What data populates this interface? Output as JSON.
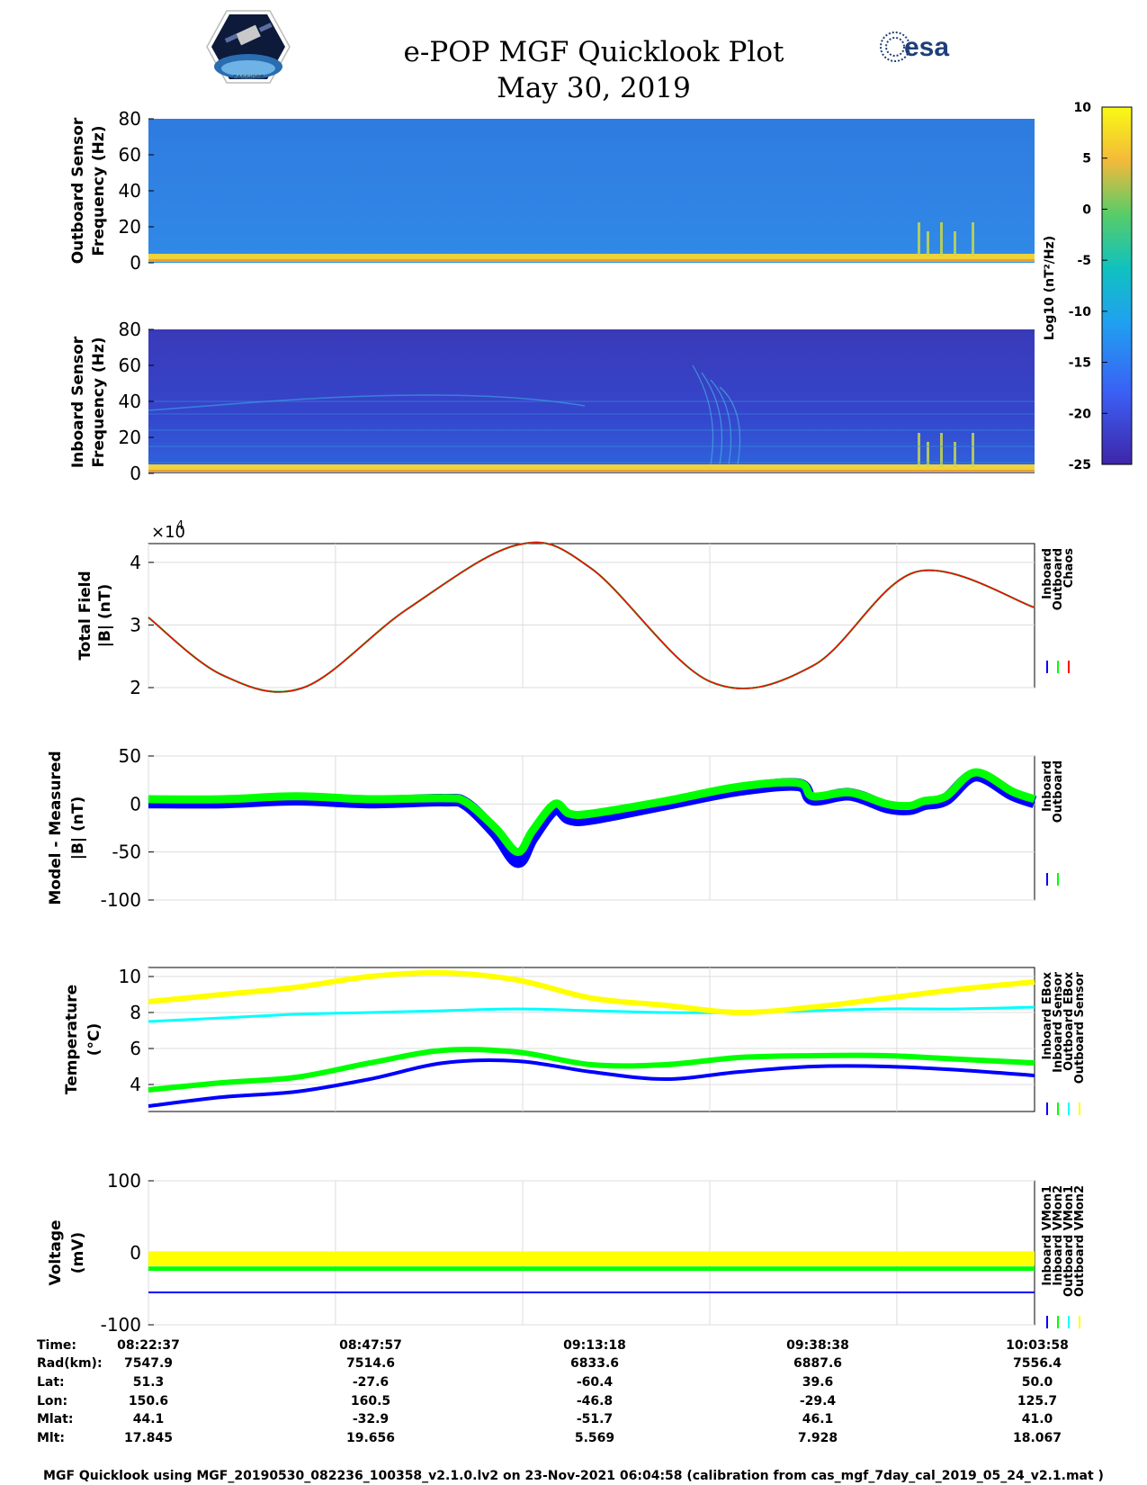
{
  "header": {
    "title_line1": "e-POP MGF Quicklook Plot",
    "title_line2": "May 30, 2019",
    "left_logo_text": "CASSIOPE",
    "right_logo_text": "esa"
  },
  "colorbar": {
    "label": "Log10 (nT²/Hz)",
    "ticks": [
      10,
      5,
      0,
      -5,
      -10,
      -15,
      -20,
      -25
    ],
    "range": [
      -25,
      10
    ]
  },
  "chart_data": [
    {
      "id": "outboard_spectrogram",
      "type": "heatmap",
      "ylabel_line1": "Outboard Sensor",
      "ylabel_line2": "Frequency (Hz)",
      "ylim": [
        0,
        80
      ],
      "yticks": [
        0,
        20,
        40,
        60,
        80
      ],
      "background_level_log10": -17,
      "low_freq_band_log10": 5
    },
    {
      "id": "inboard_spectrogram",
      "type": "heatmap",
      "ylabel_line1": "Inboard Sensor",
      "ylabel_line2": "Frequency (Hz)",
      "ylim": [
        0,
        80
      ],
      "yticks": [
        0,
        20,
        40,
        60,
        80
      ],
      "background_level_log10": -23,
      "low_freq_band_log10": 5
    },
    {
      "id": "total_field",
      "type": "line",
      "ylabel_line1": "Total Field",
      "ylabel_line2": "|B| (nT)",
      "exponent_label": "×10",
      "exponent_power": "4",
      "ylim": [
        2,
        4.3
      ],
      "yticks": [
        2,
        3,
        4
      ],
      "x_minutes": [
        0,
        10,
        21,
        35,
        50,
        60,
        76,
        90,
        104,
        120
      ],
      "series": [
        {
          "name": "Inboard",
          "color": "#0000ff",
          "values": [
            3.12,
            2.2,
            2.0,
            3.25,
            4.28,
            3.9,
            2.1,
            2.35,
            3.85,
            3.28
          ]
        },
        {
          "name": "Outboard",
          "color": "#00ff00",
          "values": [
            3.12,
            2.2,
            2.0,
            3.25,
            4.28,
            3.9,
            2.1,
            2.35,
            3.85,
            3.28
          ]
        },
        {
          "name": "Chaos",
          "color": "#ff0000",
          "values": [
            3.12,
            2.2,
            2.0,
            3.25,
            4.28,
            3.9,
            2.1,
            2.35,
            3.85,
            3.28
          ]
        }
      ]
    },
    {
      "id": "model_minus_measured",
      "type": "line",
      "ylabel_line1": "Model - Measured",
      "ylabel_line2": "|B| (nT)",
      "ylim": [
        -100,
        50
      ],
      "yticks": [
        50,
        0,
        -50,
        -100
      ],
      "x_minutes": [
        0,
        10,
        20,
        30,
        40,
        43,
        47,
        50,
        52,
        55,
        57,
        60,
        70,
        80,
        88,
        90,
        95,
        100,
        103,
        105,
        108,
        112,
        117,
        120
      ],
      "series": [
        {
          "name": "Inboard",
          "color": "#0000ff",
          "values": [
            2,
            2,
            5,
            2,
            4,
            0,
            -30,
            -60,
            -35,
            -5,
            -15,
            -15,
            0,
            15,
            20,
            5,
            10,
            -3,
            -5,
            0,
            5,
            30,
            10,
            2
          ]
        },
        {
          "name": "Outboard",
          "color": "#00ff00",
          "values": [
            5,
            5,
            8,
            5,
            6,
            2,
            -25,
            -50,
            -28,
            0,
            -10,
            -10,
            3,
            18,
            22,
            8,
            12,
            0,
            -2,
            3,
            8,
            33,
            13,
            5
          ]
        }
      ]
    },
    {
      "id": "temperature",
      "type": "line",
      "ylabel_line1": "Temperature",
      "ylabel_line2": "(°C)",
      "ylim": [
        2.5,
        10.5
      ],
      "yticks": [
        4,
        6,
        8,
        10
      ],
      "x_minutes": [
        0,
        10,
        20,
        30,
        40,
        50,
        60,
        70,
        80,
        90,
        100,
        110,
        120
      ],
      "series": [
        {
          "name": "Inboard EBox",
          "color": "#0000ff",
          "values": [
            2.8,
            3.3,
            3.6,
            4.3,
            5.2,
            5.3,
            4.7,
            4.3,
            4.7,
            5.0,
            5.0,
            4.8,
            4.5
          ]
        },
        {
          "name": "Inboard Sensor",
          "color": "#00ff00",
          "values": [
            3.7,
            4.1,
            4.4,
            5.2,
            5.9,
            5.8,
            5.1,
            5.1,
            5.5,
            5.6,
            5.6,
            5.4,
            5.2
          ]
        },
        {
          "name": "Outboard EBox",
          "color": "#00ffff",
          "values": [
            7.5,
            7.7,
            7.9,
            8.0,
            8.1,
            8.2,
            8.1,
            8.0,
            8.0,
            8.1,
            8.2,
            8.2,
            8.3
          ]
        },
        {
          "name": "Outboard Sensor",
          "color": "#ffff00",
          "values": [
            8.6,
            9.0,
            9.4,
            10.0,
            10.2,
            9.8,
            8.8,
            8.4,
            8.0,
            8.3,
            8.8,
            9.3,
            9.7
          ]
        }
      ]
    },
    {
      "id": "voltage",
      "type": "line",
      "ylabel_line1": "Voltage",
      "ylabel_line2": "(mV)",
      "ylim": [
        -100,
        100
      ],
      "yticks": [
        100,
        0,
        -100
      ],
      "x_minutes": [
        0,
        120
      ],
      "series": [
        {
          "name": "Inboard VMon1",
          "color": "#0000ff",
          "values": [
            -55,
            -55
          ]
        },
        {
          "name": "Inboard VMon2",
          "color": "#00ff00",
          "values": [
            -22,
            -22
          ]
        },
        {
          "name": "Outboard VMon1",
          "color": "#00ffff",
          "values": [
            -12,
            -12
          ]
        },
        {
          "name": "Outboard VMon2",
          "color": "#ffff00",
          "values": [
            -8,
            -8
          ]
        }
      ]
    }
  ],
  "orbit_table": {
    "row_labels": [
      "Time:",
      "Rad(km):",
      "Lat:",
      "Lon:",
      "Mlat:",
      "Mlt:"
    ],
    "columns": [
      [
        "08:22:37",
        "7547.9",
        "51.3",
        "150.6",
        "44.1",
        "17.845"
      ],
      [
        "08:47:57",
        "7514.6",
        "-27.6",
        "160.5",
        "-32.9",
        "19.656"
      ],
      [
        "09:13:18",
        "6833.6",
        "-60.4",
        "-46.8",
        "-51.7",
        "5.569"
      ],
      [
        "09:38:38",
        "6887.6",
        "39.6",
        "-29.4",
        "46.1",
        "7.928"
      ],
      [
        "10:03:58",
        "7556.4",
        "50.0",
        "125.7",
        "41.0",
        "18.067"
      ]
    ]
  },
  "footer": {
    "text": "MGF Quicklook using MGF_20190530_082236_100358_v2.1.0.lv2 on 23-Nov-2021 06:04:58 (calibration from cas_mgf_7day_cal_2019_05_24_v2.1.mat )"
  }
}
